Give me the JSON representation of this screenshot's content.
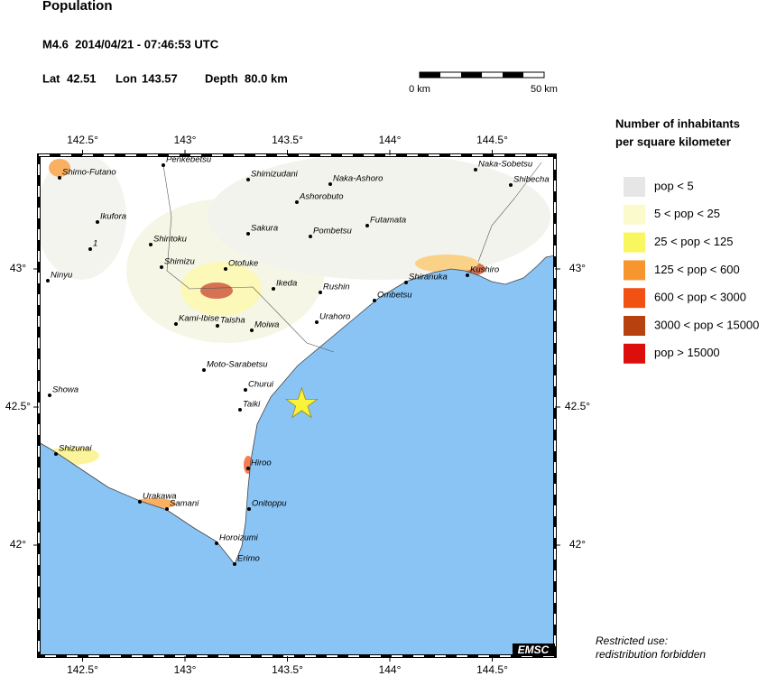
{
  "header": {
    "title": "Population",
    "event": "M4.6  2014/04/21 - 07:46:53 UTC",
    "lat": {
      "label": "Lat",
      "value": 42.51
    },
    "lon": {
      "label": "Lon",
      "value": 143.57
    },
    "depth": "Depth  80.0 km"
  },
  "scale": {
    "start": "0 km",
    "end": "50 km"
  },
  "lon_ticks": [
    {
      "value": 142.5,
      "label": "142.5°"
    },
    {
      "value": 143,
      "label": "143°"
    },
    {
      "value": 143.5,
      "label": "143.5°"
    },
    {
      "value": 144,
      "label": "144°"
    },
    {
      "value": 144.5,
      "label": "144.5°"
    }
  ],
  "lat_ticks": [
    {
      "value": 43,
      "label": "43°"
    },
    {
      "value": 42.5,
      "label": "42.5°"
    },
    {
      "value": 42,
      "label": "42°"
    }
  ],
  "cities": [
    "Shimo-Futano",
    "Penkebetsu",
    "Shimizudani",
    "Naka-Ashoro",
    "Naka-Sobetsu",
    "Shibecha",
    "Ashorobuto",
    "Ikufora",
    "Futamata",
    "Pombetsu",
    "Sakura",
    "1",
    "Shintoku",
    "Shimizu",
    "Otofuke",
    "Kushiro",
    "Shiranuka",
    "Ninyu",
    "Ikeda",
    "Rushin",
    "Ombetsu",
    "Kami-Ibise",
    "Taisha",
    "Moiwa",
    "Urahoro",
    "Moto-Sarabetsu",
    "Churui",
    "Showa",
    "Taiki",
    "Shizunai",
    "Hiroo",
    "Urakawa",
    "Samani",
    "Onitoppu",
    "Horoizumi",
    "Erimo"
  ],
  "legend": {
    "title": [
      "Number of inhabitants",
      "per square kilometer"
    ],
    "items": [
      {
        "label": "pop < 5",
        "color": "#e6e6e6"
      },
      {
        "label": "5 < pop < 25",
        "color": "#fbfacc"
      },
      {
        "label": "25 < pop < 125",
        "color": "#f9f75f"
      },
      {
        "label": "125 < pop < 600",
        "color": "#f7962f"
      },
      {
        "label": "600 < pop < 3000",
        "color": "#f25114"
      },
      {
        "label": "3000 < pop < 15000",
        "color": "#b8420f"
      },
      {
        "label": "pop > 15000",
        "color": "#dc0f0c"
      }
    ]
  },
  "badge": "EMSC",
  "notice": [
    "Restricted use:",
    "redistribution forbidden"
  ]
}
